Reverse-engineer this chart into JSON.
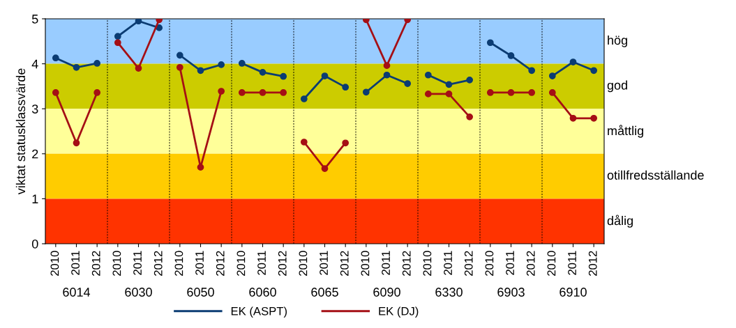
{
  "chart_data": {
    "type": "line",
    "ylabel": "viktat statusklassvärde",
    "categories": [
      "2010",
      "2011",
      "2012",
      "2010",
      "2011",
      "2012",
      "2010",
      "2011",
      "2012",
      "2010",
      "2011",
      "2012",
      "2010",
      "2011",
      "2012",
      "2010",
      "2011",
      "2012",
      "2010",
      "2011",
      "2012",
      "2010",
      "2011",
      "2012",
      "2010",
      "2011",
      "2012"
    ],
    "annotations": [
      "6014",
      "6030",
      "6050",
      "6060",
      "6065",
      "6090",
      "6330",
      "6903",
      "6910"
    ],
    "series": [
      {
        "name": "EK (ASPT)",
        "color": "#0b3c73",
        "values": [
          4.13,
          3.92,
          4.01,
          4.61,
          4.95,
          4.8,
          4.19,
          3.85,
          3.98,
          4.01,
          3.81,
          3.72,
          3.22,
          3.73,
          3.48,
          3.37,
          3.75,
          3.56,
          3.75,
          3.54,
          3.64,
          4.47,
          4.18,
          3.85,
          3.73,
          4.04,
          3.85
        ]
      },
      {
        "name": "EK (DJ)",
        "color": "#a50f15",
        "values": [
          3.36,
          2.24,
          3.36,
          4.47,
          3.9,
          4.98,
          3.92,
          1.7,
          3.39,
          3.36,
          3.36,
          3.36,
          2.26,
          1.67,
          2.24,
          4.98,
          3.96,
          4.98,
          3.33,
          3.33,
          2.82,
          3.36,
          3.36,
          3.36,
          3.36,
          2.79,
          2.79
        ]
      }
    ],
    "bands": [
      {
        "axis": "y",
        "from": 4,
        "to": 5,
        "label": "hög",
        "color": "#99ccff"
      },
      {
        "axis": "y",
        "from": 3,
        "to": 4,
        "label": "god",
        "color": "#cccc00"
      },
      {
        "axis": "y",
        "from": 2,
        "to": 3,
        "label": "måttlig",
        "color": "#ffff99"
      },
      {
        "axis": "y",
        "from": 1,
        "to": 2,
        "label": "otillfredsställande",
        "color": "#ffcc00"
      },
      {
        "axis": "y",
        "from": 0,
        "to": 1,
        "label": "dålig",
        "color": "#ff3300"
      }
    ],
    "ylim": [
      0,
      5
    ],
    "yticks": [
      0,
      1,
      2,
      3,
      4,
      5
    ],
    "marker": "circle",
    "line_style": "solid",
    "legend": "bottom",
    "grid": false
  }
}
